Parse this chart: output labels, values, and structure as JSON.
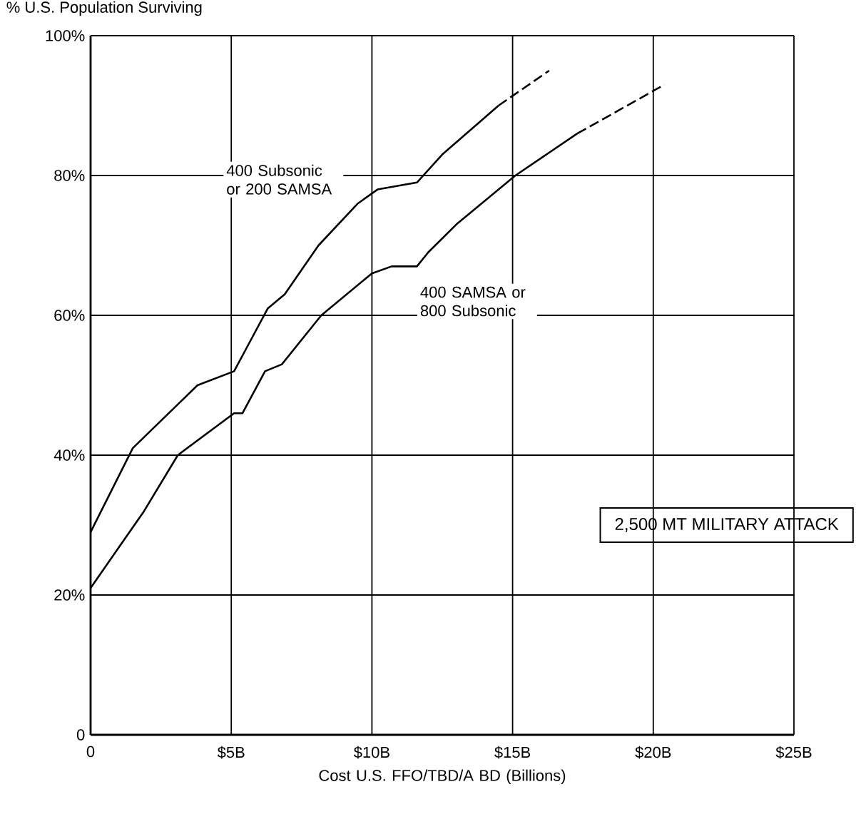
{
  "chart_data": {
    "type": "line",
    "ylabel": "% U.S. Population Surviving",
    "xlabel": "Cost U.S. FFO/TBD/A BD (Billions)",
    "xlim": [
      0,
      25
    ],
    "ylim": [
      0,
      100
    ],
    "xticks": [
      0,
      {
        "value": 5,
        "label": "$5B"
      },
      {
        "value": 10,
        "label": "$10B"
      },
      {
        "value": 15,
        "label": "$15B"
      },
      {
        "value": 20,
        "label": "$20B"
      },
      {
        "value": 25,
        "label": "$25B"
      }
    ],
    "yticks": [
      0,
      {
        "value": 20,
        "label": "20%"
      },
      {
        "value": 40,
        "label": "40%"
      },
      {
        "value": 60,
        "label": "60%"
      },
      {
        "value": 80,
        "label": "80%"
      },
      {
        "value": 100,
        "label": "100%"
      }
    ],
    "grid": true,
    "legend": false,
    "marker": "none",
    "series": [
      {
        "name": "400 Subsonic or 200 SAMSA",
        "color": "#000000",
        "line_style": "solid",
        "x": [
          0,
          1.5,
          3.8,
          5.1,
          5.5,
          6.3,
          6.9,
          8.1,
          9.5,
          10.2,
          11.6,
          12.5,
          14.5
        ],
        "values": [
          29,
          41,
          50,
          52,
          55,
          61,
          63,
          70,
          76,
          78,
          79,
          83,
          90
        ]
      },
      {
        "color": "#000000",
        "line_style": "dashed",
        "x": [
          14.5,
          16.3
        ],
        "values": [
          90,
          95
        ]
      },
      {
        "name": "400 SAMSA or 800 Subsonic",
        "color": "#000000",
        "line_style": "solid",
        "x": [
          0,
          1.9,
          3.1,
          5.1,
          5.4,
          6.2,
          6.8,
          8.2,
          10,
          10.7,
          11.6,
          12,
          13,
          15.1,
          17.3
        ],
        "values": [
          21,
          32,
          40,
          46,
          46,
          52,
          53,
          60,
          66,
          67,
          67,
          69,
          73,
          80,
          86
        ]
      },
      {
        "color": "#000000",
        "line_style": "dashed",
        "x": [
          17.3,
          20.4
        ],
        "values": [
          86,
          93
        ]
      }
    ],
    "annotations": [
      "2,500 MT MILITARY ATTACK"
    ]
  }
}
